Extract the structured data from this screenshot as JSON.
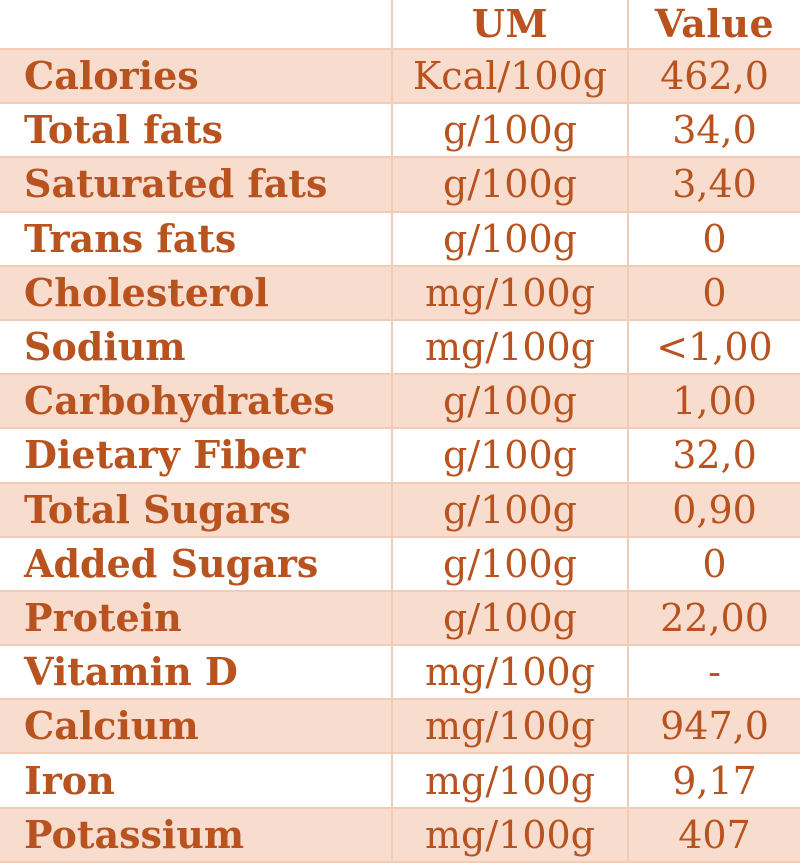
{
  "header": {
    "name_label": "",
    "um_label": "UM",
    "value_label": "Value"
  },
  "rows": [
    {
      "name": "Calories",
      "um": "Kcal/100g",
      "value": "462,0"
    },
    {
      "name": "Total fats",
      "um": "g/100g",
      "value": "34,0"
    },
    {
      "name": "Saturated fats",
      "um": "g/100g",
      "value": "3,40"
    },
    {
      "name": "Trans fats",
      "um": "g/100g",
      "value": "0"
    },
    {
      "name": "Cholesterol",
      "um": "mg/100g",
      "value": "0"
    },
    {
      "name": "Sodium",
      "um": "mg/100g",
      "value": "<1,00"
    },
    {
      "name": "Carbohydrates",
      "um": "g/100g",
      "value": "1,00"
    },
    {
      "name": "Dietary Fiber",
      "um": "g/100g",
      "value": "32,0"
    },
    {
      "name": "Total Sugars",
      "um": "g/100g",
      "value": "0,90"
    },
    {
      "name": "Added Sugars",
      "um": "g/100g",
      "value": "0"
    },
    {
      "name": "Protein",
      "um": "g/100g",
      "value": "22,00"
    },
    {
      "name": "Vitamin D",
      "um": "mg/100g",
      "value": "-"
    },
    {
      "name": "Calcium",
      "um": "mg/100g",
      "value": "947,0"
    },
    {
      "name": "Iron",
      "um": "mg/100g",
      "value": "9,17"
    },
    {
      "name": "Potassium",
      "um": "mg/100g",
      "value": "407"
    }
  ]
}
